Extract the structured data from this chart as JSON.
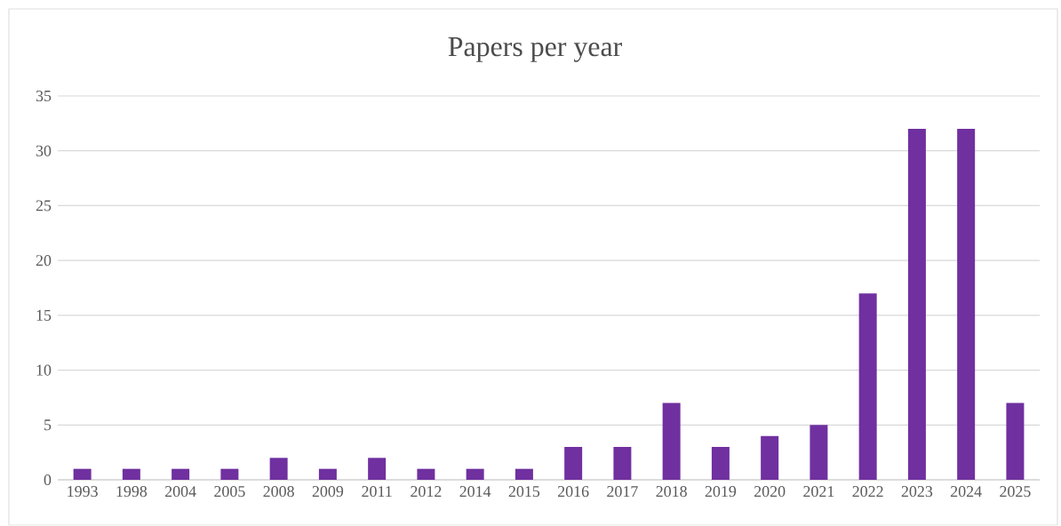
{
  "chart_data": {
    "type": "bar",
    "title": "Papers per year",
    "categories": [
      "1993",
      "1998",
      "2004",
      "2005",
      "2008",
      "2009",
      "2011",
      "2012",
      "2014",
      "2015",
      "2016",
      "2017",
      "2018",
      "2019",
      "2020",
      "2021",
      "2022",
      "2023",
      "2024",
      "2025"
    ],
    "values": [
      1,
      1,
      1,
      1,
      2,
      1,
      2,
      1,
      1,
      1,
      3,
      3,
      7,
      3,
      4,
      5,
      17,
      32,
      32,
      7
    ],
    "color": "#7030a0",
    "ylim": [
      0,
      35
    ],
    "yticks": [
      0,
      5,
      10,
      15,
      20,
      25,
      30,
      35
    ],
    "grid": "y"
  }
}
